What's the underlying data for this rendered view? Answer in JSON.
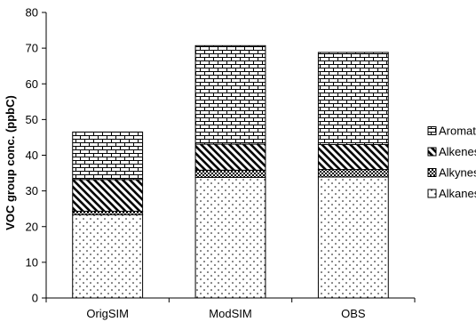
{
  "chart_data": {
    "type": "bar",
    "stacked": true,
    "categories": [
      "OrigSIM",
      "ModSIM",
      "OBS"
    ],
    "series": [
      {
        "name": "Alkanes",
        "values": [
          23.3,
          33.8,
          33.9
        ],
        "pattern": "dots"
      },
      {
        "name": "Alkynes",
        "values": [
          1.0,
          2.0,
          2.1
        ],
        "pattern": "checker"
      },
      {
        "name": "Alkenes",
        "values": [
          8.9,
          7.3,
          7.0
        ],
        "pattern": "diagonal"
      },
      {
        "name": "Aromatics",
        "values": [
          13.3,
          27.6,
          25.8
        ],
        "pattern": "brick"
      }
    ],
    "ylabel": "VOC group conc. (ppbC)",
    "xlabel": "",
    "title": "",
    "ylim": [
      0,
      80
    ],
    "yticks": [
      0,
      10,
      20,
      30,
      40,
      50,
      60,
      70,
      80
    ],
    "grid": false,
    "legend_position": "right",
    "legend_order": [
      "Aromatics",
      "Alkenes",
      "Alkynes",
      "Alkanes"
    ]
  }
}
